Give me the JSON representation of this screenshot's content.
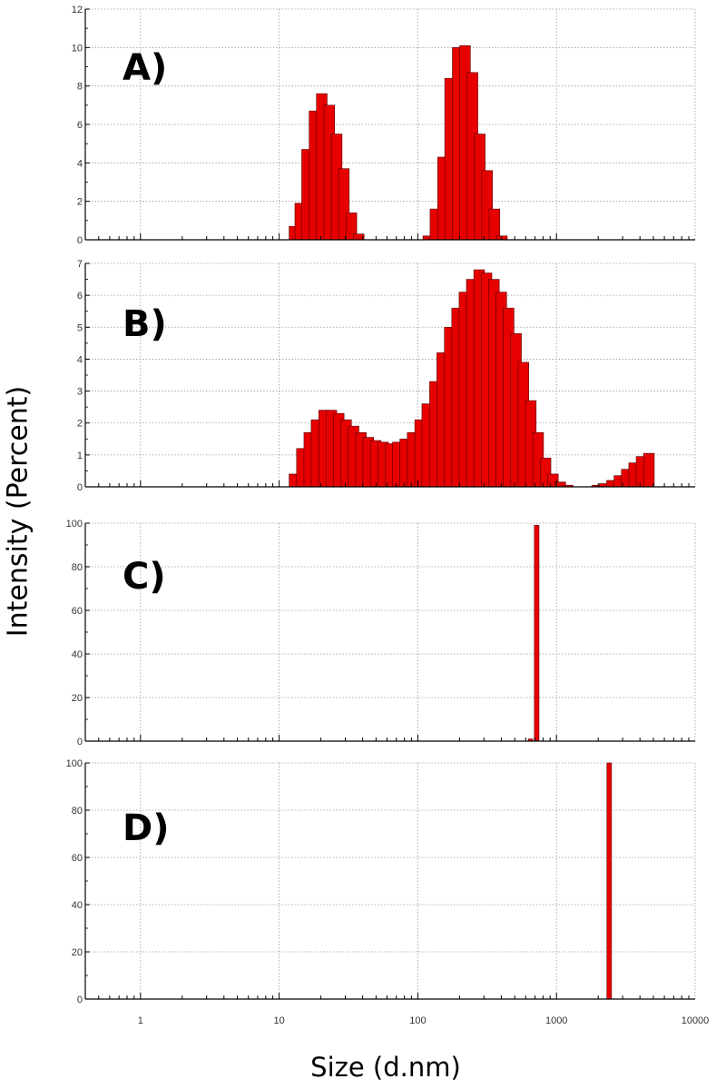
{
  "figure": {
    "y_axis_title": "Intensity (Percent)",
    "x_axis_title": "Size (d.nm)",
    "bar_color": "#e60000",
    "bar_edge_color": "#5a0000",
    "grid_color": "#9a9a9a"
  },
  "chart_data": [
    {
      "type": "bar",
      "label": "A)",
      "xscale": "log",
      "xlim": [
        0.4,
        10000
      ],
      "ylim": [
        0,
        12
      ],
      "yticks": [
        0,
        2,
        4,
        6,
        8,
        10,
        12
      ],
      "xticks": [
        1,
        10,
        100,
        1000,
        10000
      ],
      "show_xtick_labels": false,
      "bins_per_decade": 13,
      "x": [
        12.9,
        14.2,
        15.9,
        18.0,
        20.3,
        23.0,
        26.0,
        29.3,
        33.2,
        37.5,
        42.4,
        48.0,
        54.2,
        119,
        134,
        152,
        171,
        194,
        219,
        248,
        280,
        316,
        357,
        404,
        456,
        516
      ],
      "values": [
        0.7,
        1.9,
        4.7,
        6.7,
        7.6,
        7.0,
        5.5,
        3.7,
        1.4,
        0.3,
        0.0,
        0.0,
        0.0,
        0.2,
        1.6,
        4.3,
        8.4,
        10.0,
        10.1,
        8.7,
        5.5,
        3.6,
        1.6,
        0.2,
        0.0,
        0.0
      ]
    },
    {
      "type": "bar",
      "label": "B)",
      "xscale": "log",
      "xlim": [
        0.4,
        10000
      ],
      "ylim": [
        0,
        7
      ],
      "yticks": [
        0,
        1,
        2,
        3,
        4,
        5,
        6,
        7
      ],
      "xticks": [
        1,
        10,
        100,
        1000,
        10000
      ],
      "show_xtick_labels": false,
      "bins_per_decade": 13,
      "x": [
        12.9,
        14.6,
        16.5,
        18.6,
        21.1,
        23.8,
        26.9,
        30.4,
        34.4,
        38.9,
        44.0,
        49.7,
        56.2,
        63.5,
        71.8,
        81.2,
        91.8,
        104,
        117,
        133,
        150,
        170,
        192,
        217,
        245,
        277,
        313,
        354,
        400,
        452,
        511,
        578,
        653,
        738,
        834,
        943,
        1066,
        1205,
        1362,
        1540,
        1741,
        1968,
        2225,
        2515,
        2843,
        3214,
        3633,
        4107,
        4643,
        5249,
        5934
      ],
      "values": [
        0.4,
        1.2,
        1.7,
        2.1,
        2.4,
        2.4,
        2.3,
        2.1,
        1.9,
        1.7,
        1.55,
        1.45,
        1.4,
        1.35,
        1.4,
        1.5,
        1.7,
        2.1,
        2.6,
        3.3,
        4.2,
        5.0,
        5.6,
        6.1,
        6.5,
        6.8,
        6.7,
        6.5,
        6.1,
        5.6,
        4.8,
        3.9,
        2.7,
        1.7,
        0.9,
        0.4,
        0.15,
        0.05,
        0.0,
        0.0,
        0.0,
        0.05,
        0.1,
        0.2,
        0.35,
        0.55,
        0.75,
        0.95,
        1.05,
        0.0,
        0.0
      ]
    },
    {
      "type": "bar",
      "label": "C)",
      "xscale": "log",
      "xlim": [
        0.4,
        10000
      ],
      "ylim": [
        0,
        100
      ],
      "yticks": [
        0,
        20,
        40,
        60,
        80,
        100
      ],
      "xticks": [
        1,
        10,
        100,
        1000,
        10000
      ],
      "show_xtick_labels": false,
      "bins_per_decade": 30,
      "x": [
        650,
        720
      ],
      "values": [
        1.0,
        99.0
      ]
    },
    {
      "type": "bar",
      "label": "D)",
      "xscale": "log",
      "xlim": [
        0.4,
        10000
      ],
      "ylim": [
        0,
        100
      ],
      "yticks": [
        0,
        20,
        40,
        60,
        80,
        100
      ],
      "xticks": [
        1,
        10,
        100,
        1000,
        10000
      ],
      "xtick_labels": [
        "1",
        "10",
        "100",
        "1000",
        "10000"
      ],
      "show_xtick_labels": true,
      "bins_per_decade": 30,
      "x": [
        2400
      ],
      "values": [
        100
      ]
    }
  ]
}
